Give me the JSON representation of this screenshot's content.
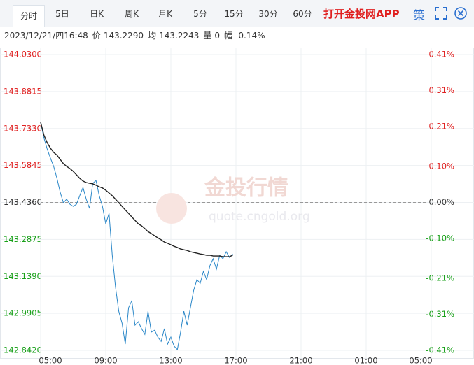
{
  "header": {
    "tabs": [
      "分时",
      "5日",
      "日K",
      "周K",
      "月K",
      "5分",
      "15分",
      "30分",
      "60分"
    ],
    "app_link": "打开金投网APP",
    "strategy": "策"
  },
  "info": {
    "time": "2023/12/21/四16:48",
    "items": [
      {
        "label": "价",
        "value": "143.2290"
      },
      {
        "label": "均",
        "value": "143.2243"
      },
      {
        "label": "量",
        "value": "0"
      },
      {
        "label": "幅",
        "value": "-0.14%"
      }
    ]
  },
  "chart_data": {
    "type": "line",
    "watermark": [
      "金投行情",
      "quote.cngold.org"
    ],
    "x": [
      0,
      0.2,
      0.4,
      0.6,
      0.8,
      1,
      1.2,
      1.4,
      1.6,
      1.8,
      2,
      2.2,
      2.4,
      2.6,
      2.8,
      3,
      3.2,
      3.4,
      3.6,
      3.8,
      4,
      4.2,
      4.4,
      4.6,
      4.8,
      5,
      5.2,
      5.4,
      5.6,
      5.8,
      6,
      6.2,
      6.4,
      6.6,
      6.8,
      7,
      7.2,
      7.4,
      7.6,
      7.8,
      8,
      8.2,
      8.4,
      8.6,
      8.8,
      9,
      9.2,
      9.4,
      9.6,
      9.8,
      10,
      10.2,
      10.4,
      10.6,
      10.8,
      11,
      11.2,
      11.4,
      11.6,
      11.8
    ],
    "series": [
      {
        "name": "价",
        "color": "#2a87c8",
        "values": [
          143.758,
          143.696,
          143.651,
          143.614,
          143.581,
          143.533,
          143.477,
          143.435,
          143.449,
          143.429,
          143.42,
          143.429,
          143.463,
          143.496,
          143.449,
          143.412,
          143.513,
          143.524,
          143.463,
          143.42,
          143.35,
          143.392,
          143.224,
          143.097,
          142.999,
          142.951,
          142.867,
          143.013,
          143.041,
          142.943,
          142.957,
          142.929,
          142.906,
          142.999,
          142.915,
          142.923,
          142.895,
          142.878,
          142.929,
          142.867,
          142.895,
          142.859,
          142.845,
          142.915,
          142.999,
          142.943,
          143.013,
          143.083,
          143.126,
          143.111,
          143.159,
          143.126,
          143.182,
          143.21,
          143.168,
          143.224,
          143.21,
          143.238,
          143.215,
          143.229
        ]
      },
      {
        "name": "均",
        "color": "#222222",
        "values": [
          143.758,
          143.707,
          143.676,
          143.654,
          143.637,
          143.626,
          143.609,
          143.592,
          143.581,
          143.572,
          143.561,
          143.547,
          143.533,
          143.522,
          143.516,
          143.513,
          143.511,
          143.505,
          143.499,
          143.494,
          143.485,
          143.474,
          143.463,
          143.449,
          143.435,
          143.42,
          143.406,
          143.392,
          143.378,
          143.364,
          143.35,
          143.342,
          143.331,
          143.319,
          143.311,
          143.302,
          143.294,
          143.286,
          143.277,
          143.272,
          143.266,
          143.26,
          143.255,
          143.249,
          143.246,
          143.243,
          143.238,
          143.235,
          143.232,
          143.229,
          143.227,
          143.224,
          143.224,
          143.221,
          143.221,
          143.221,
          143.218,
          143.218,
          143.218,
          143.224
        ]
      }
    ],
    "baseline": 143.436,
    "xlim": [
      0,
      24
    ],
    "xticks": [
      {
        "value": 0,
        "label": "05:00"
      },
      {
        "value": 4,
        "label": "09:00"
      },
      {
        "value": 8,
        "label": "13:00"
      },
      {
        "value": 12,
        "label": "17:00"
      },
      {
        "value": 16,
        "label": "21:00"
      },
      {
        "value": 20,
        "label": "01:00"
      },
      {
        "value": 24,
        "label": "05:00"
      }
    ],
    "ylim": [
      142.842,
      144.03
    ],
    "yticks": [
      {
        "value": 144.03,
        "label": "144.0300"
      },
      {
        "value": 143.8815,
        "label": "143.8815"
      },
      {
        "value": 143.733,
        "label": "143.7330"
      },
      {
        "value": 143.5845,
        "label": "143.5845"
      },
      {
        "value": 143.436,
        "label": "143.4360"
      },
      {
        "value": 143.2875,
        "label": "143.2875"
      },
      {
        "value": 143.139,
        "label": "143.1390"
      },
      {
        "value": 142.9905,
        "label": "142.9905"
      },
      {
        "value": 142.842,
        "label": "142.8420"
      }
    ],
    "y2lim": [
      -0.41,
      0.41
    ],
    "y2ticks": [
      {
        "value": 0.41,
        "label": "0.41%"
      },
      {
        "value": 0.31,
        "label": "0.31%"
      },
      {
        "value": 0.21,
        "label": "0.21%"
      },
      {
        "value": 0.1,
        "label": "0.10%"
      },
      {
        "value": 0,
        "label": "0.00%"
      },
      {
        "value": -0.1,
        "label": "-0.10%"
      },
      {
        "value": -0.21,
        "label": "-0.21%"
      },
      {
        "value": -0.31,
        "label": "-0.31%"
      },
      {
        "value": -0.41,
        "label": "-0.41%"
      }
    ],
    "up_color": "#e02020",
    "down_color": "#18a018",
    "grid": true
  }
}
